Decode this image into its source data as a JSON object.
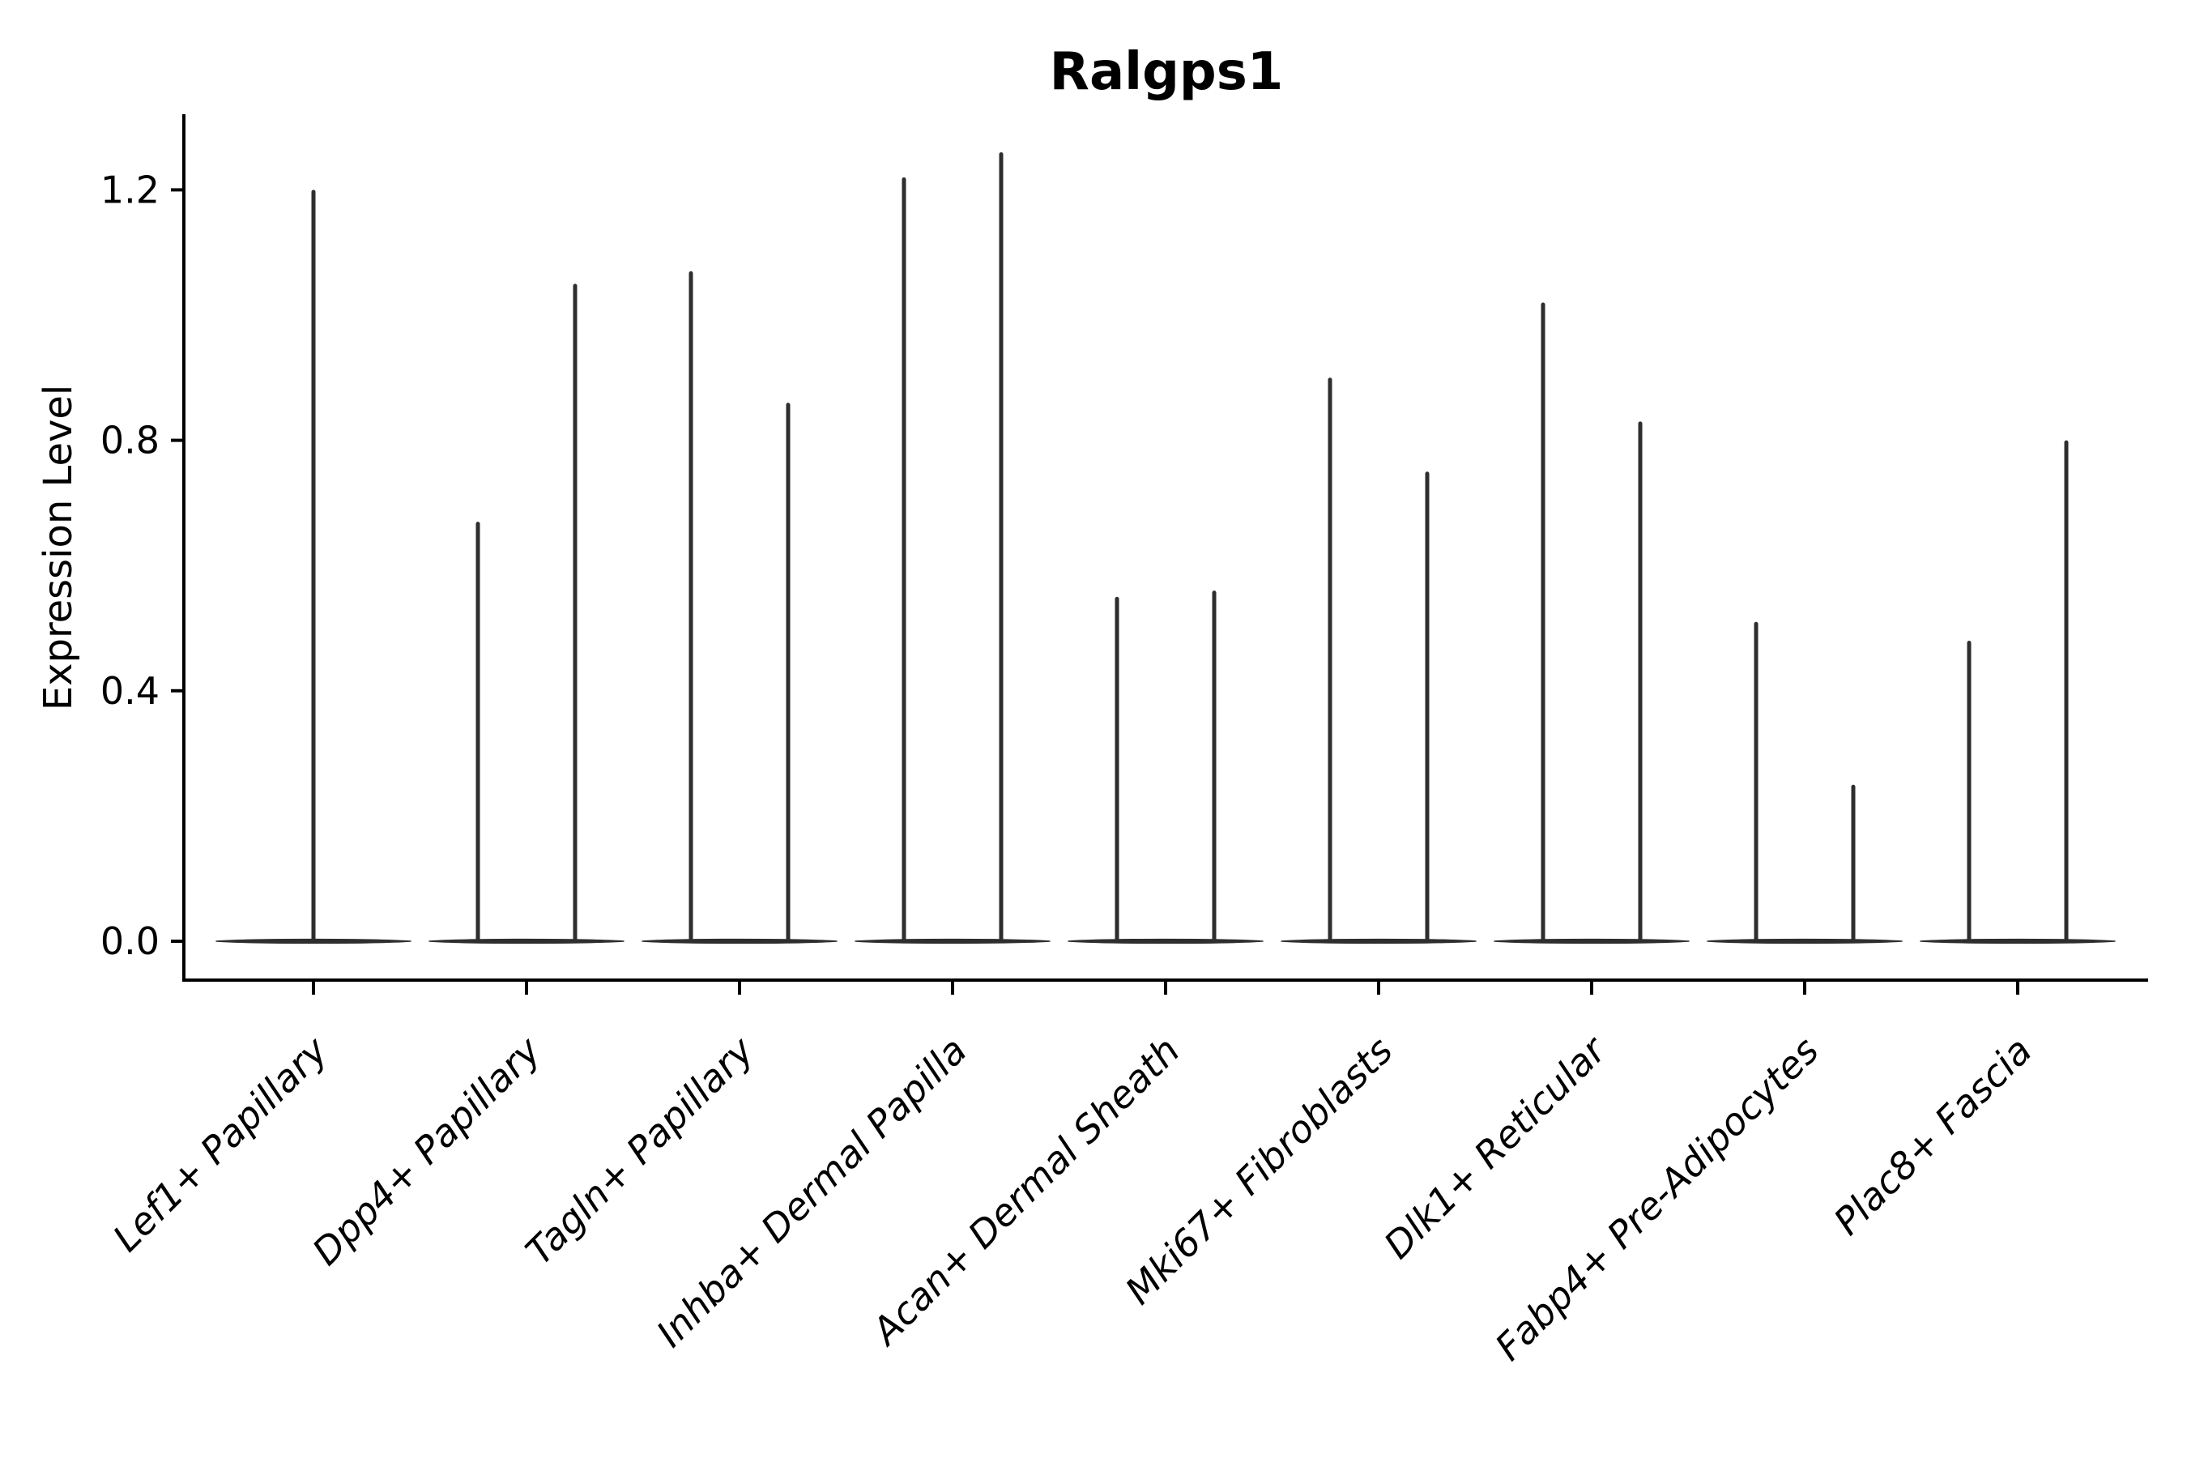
{
  "chart_data": {
    "type": "violin",
    "title": "Ralgps1",
    "xlabel": "",
    "ylabel": "Expression Level",
    "categories": [
      "Lef1+ Papillary",
      "Dpp4+ Papillary",
      "Tagln+ Papillary",
      "Inhba+ Dermal Papilla",
      "Acan+ Dermal Sheath",
      "Mki67+ Fibroblasts",
      "Dlk1+ Reticular",
      "Fabp4+ Pre-Adipocytes",
      "Plac8+ Fascia"
    ],
    "ytick_labels": [
      "0.0",
      "0.4",
      "0.8",
      "1.2"
    ],
    "ytick_values": [
      0.0,
      0.4,
      0.8,
      1.2
    ],
    "ylim": [
      -0.066,
      1.322
    ],
    "grid": false,
    "legend": false,
    "xtick_rotation": 45,
    "violins": [
      {
        "category": "Lef1+ Papillary",
        "zero_peak": 0.0,
        "spikes": [
          {
            "offset": 0.0,
            "max": 1.2
          }
        ]
      },
      {
        "category": "Dpp4+ Papillary",
        "zero_peak": 0.0,
        "spikes": [
          {
            "offset": -0.23,
            "max": 0.67
          },
          {
            "offset": 0.23,
            "max": 1.05
          }
        ]
      },
      {
        "category": "Tagln+ Papillary",
        "zero_peak": 0.0,
        "spikes": [
          {
            "offset": -0.23,
            "max": 1.07
          },
          {
            "offset": 0.23,
            "max": 0.86
          }
        ]
      },
      {
        "category": "Inhba+ Dermal Papilla",
        "zero_peak": 0.0,
        "spikes": [
          {
            "offset": -0.23,
            "max": 1.22
          },
          {
            "offset": 0.23,
            "max": 1.26
          }
        ]
      },
      {
        "category": "Acan+ Dermal Sheath",
        "zero_peak": 0.0,
        "spikes": [
          {
            "offset": -0.23,
            "max": 0.55
          },
          {
            "offset": 0.23,
            "max": 0.56
          }
        ]
      },
      {
        "category": "Mki67+ Fibroblasts",
        "zero_peak": 0.0,
        "spikes": [
          {
            "offset": -0.23,
            "max": 0.9
          },
          {
            "offset": 0.23,
            "max": 0.75
          }
        ]
      },
      {
        "category": "Dlk1+ Reticular",
        "zero_peak": 0.0,
        "spikes": [
          {
            "offset": -0.23,
            "max": 1.02
          },
          {
            "offset": 0.23,
            "max": 0.83
          }
        ]
      },
      {
        "category": "Fabp4+ Pre-Adipocytes",
        "zero_peak": 0.0,
        "spikes": [
          {
            "offset": -0.23,
            "max": 0.51
          },
          {
            "offset": 0.23,
            "max": 0.25
          }
        ]
      },
      {
        "category": "Plac8+ Fascia",
        "zero_peak": 0.0,
        "spikes": [
          {
            "offset": -0.23,
            "max": 0.48
          },
          {
            "offset": 0.23,
            "max": 0.8
          }
        ]
      }
    ],
    "colors": {
      "violin_stroke": "#2e2e2e",
      "axis": "#000000",
      "text": "#000000",
      "background": "#ffffff"
    }
  }
}
